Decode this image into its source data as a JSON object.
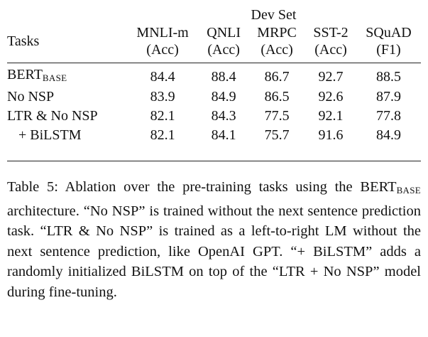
{
  "table": {
    "devset_label": "Dev Set",
    "tasks_label": "Tasks",
    "columns": [
      {
        "name": "MNLI-m",
        "metric": "(Acc)"
      },
      {
        "name": "QNLI",
        "metric": "(Acc)"
      },
      {
        "name": "MRPC",
        "metric": "(Acc)"
      },
      {
        "name": "SST-2",
        "metric": "(Acc)"
      },
      {
        "name": "SQuAD",
        "metric": "(F1)"
      }
    ],
    "rows": [
      {
        "task": "BERT",
        "task_sub": "BASE",
        "values": [
          "84.4",
          "88.4",
          "86.7",
          "92.7",
          "88.5"
        ]
      },
      {
        "task": "No NSP",
        "values": [
          "83.9",
          "84.9",
          "86.5",
          "92.6",
          "87.9"
        ]
      },
      {
        "task": "LTR & No NSP",
        "values": [
          "82.1",
          "84.3",
          "77.5",
          "92.1",
          "77.8"
        ]
      },
      {
        "task": "+ BiLSTM",
        "values": [
          "82.1",
          "84.1",
          "75.7",
          "91.6",
          "84.9"
        ]
      }
    ]
  },
  "caption": {
    "part1": "Table 5: Ablation over the pre-training tasks using the BERT",
    "sub": "BASE",
    "part2": " architecture. “No NSP” is trained without the next sentence prediction task. “LTR & No NSP” is trained as a left-to-right LM without the next sentence prediction, like OpenAI GPT. “+ BiLSTM” adds a randomly initialized BiLSTM on top of the “LTR + No NSP” model during fine-tuning."
  }
}
